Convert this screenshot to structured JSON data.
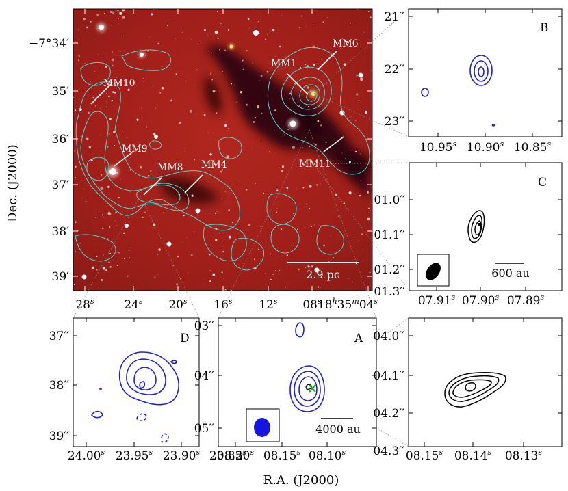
{
  "figure": {
    "xlabel": "R.A. (J2000)",
    "ylabel": "Dec. (J2000)"
  },
  "main": {
    "dec_ticks": [
      "−7°34′",
      "35′",
      "36′",
      "37′",
      "38′",
      "39′"
    ],
    "ra_ticks": [
      "28s",
      "24s",
      "20s",
      "16s",
      "12s",
      "08s",
      "18h35m04s"
    ],
    "ra_tick_parts": [
      {
        "num": "28",
        "sup": "s"
      },
      {
        "num": "24",
        "sup": "s"
      },
      {
        "num": "20",
        "sup": "s"
      },
      {
        "num": "16",
        "sup": "s"
      },
      {
        "num": "12",
        "sup": "s"
      },
      {
        "num": "08",
        "sup": "s"
      },
      {
        "num": "18",
        "sup": "h",
        "num2": "35",
        "sup2": "m",
        "num3": "04",
        "sup3": "s"
      }
    ],
    "sources": [
      {
        "name": "MM1",
        "label": "MM1"
      },
      {
        "name": "MM4",
        "label": "MM4"
      },
      {
        "name": "MM6",
        "label": "MM6"
      },
      {
        "name": "MM8",
        "label": "MM8"
      },
      {
        "name": "MM9",
        "label": "MM9"
      },
      {
        "name": "MM10",
        "label": "MM10"
      },
      {
        "name": "MM11",
        "label": "MM11"
      }
    ],
    "scalebar": "2.9 pc",
    "contour_color": "#4fd6d0",
    "image_colors": {
      "red": "#a5221c",
      "dark": "#1c0608"
    }
  },
  "panels": {
    "B": {
      "label": "B",
      "yticks": [
        "21′′",
        "22′′",
        "23′′"
      ],
      "xticks": [
        {
          "num": "10.95",
          "sup": "s"
        },
        {
          "num": "10.90",
          "sup": "s"
        },
        {
          "num": "10.85",
          "sup": "s"
        }
      ],
      "contour_color": "#1f1fd6"
    },
    "C": {
      "label": "C",
      "yticks": [
        "01.0′′",
        "01.1′′",
        "01.2′′",
        "01.3′′"
      ],
      "xticks": [
        {
          "num": "07.91",
          "sup": "s"
        },
        {
          "num": "07.90",
          "sup": "s"
        },
        {
          "num": "07.89",
          "sup": "s"
        }
      ],
      "scalebar": "600 au",
      "contour_color": "#000000"
    },
    "D": {
      "label": "D",
      "yticks": [
        "37′′",
        "38′′",
        "39′′"
      ],
      "xticks": [
        {
          "num": "24.00",
          "sup": "s"
        },
        {
          "num": "23.95",
          "sup": "s"
        },
        {
          "num": "23.90",
          "sup": "s"
        },
        {
          "num": "23.85",
          "sup": "s"
        }
      ],
      "contour_color": "#1f1fd6"
    },
    "A": {
      "label": "A",
      "yticks": [
        "03′′",
        "04′′",
        "05′′"
      ],
      "xticks": [
        {
          "num": "08.20",
          "sup": "s"
        },
        {
          "num": "08.15",
          "sup": "s"
        },
        {
          "num": "08.10",
          "sup": "s"
        }
      ],
      "scalebar": "4000 au",
      "contour_color": "#1f1fd6",
      "beam_color": "#1515e0",
      "marker_color": "#1aa41a"
    },
    "E": {
      "yticks": [
        "04.0′′",
        "04.1′′",
        "04.2′′",
        "04.3′′"
      ],
      "xticks": [
        {
          "num": "08.15",
          "sup": "s"
        },
        {
          "num": "08.14",
          "sup": "s"
        },
        {
          "num": "08.13",
          "sup": "s"
        }
      ],
      "contour_color": "#000000"
    }
  }
}
